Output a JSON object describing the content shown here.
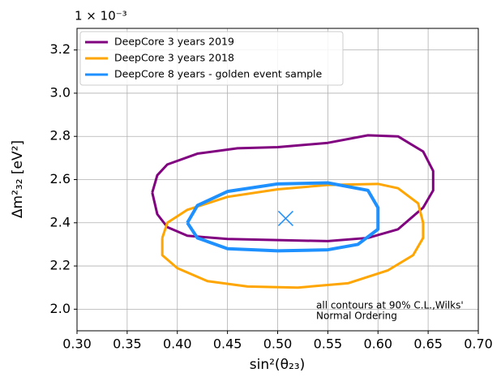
{
  "chart_data": {
    "type": "line",
    "axis_multiplier": "1 × 10⁻³",
    "xlabel": "sin²(θ₂₃)",
    "ylabel": "Δm²₃₂ [eV²]",
    "xlim": [
      0.3,
      0.7
    ],
    "ylim": [
      1.9,
      3.3
    ],
    "xticks": [
      {
        "value": 0.3,
        "label": "0.30"
      },
      {
        "value": 0.35,
        "label": "0.35"
      },
      {
        "value": 0.4,
        "label": "0.40"
      },
      {
        "value": 0.45,
        "label": "0.45"
      },
      {
        "value": 0.5,
        "label": "0.50"
      },
      {
        "value": 0.55,
        "label": "0.55"
      },
      {
        "value": 0.6,
        "label": "0.60"
      },
      {
        "value": 0.65,
        "label": "0.65"
      },
      {
        "value": 0.7,
        "label": "0.70"
      }
    ],
    "yticks": [
      {
        "value": 2,
        "label": "2.0"
      },
      2.2,
      2.4,
      2.6,
      2.8,
      {
        "value": 3,
        "label": "3.0"
      },
      3.2
    ],
    "grid": true,
    "legend": "upper left",
    "series": [
      {
        "name": "DeepCore 3 years 2019",
        "color": "#800080",
        "x": [
          0.375,
          0.38,
          0.39,
          0.42,
          0.46,
          0.5,
          0.55,
          0.59,
          0.62,
          0.645,
          0.655,
          0.655,
          0.645,
          0.62,
          0.59,
          0.55,
          0.5,
          0.45,
          0.41,
          0.39,
          0.38,
          0.375
        ],
        "values": [
          2.54,
          2.62,
          2.67,
          2.72,
          2.745,
          2.75,
          2.77,
          2.805,
          2.8,
          2.73,
          2.64,
          2.55,
          2.47,
          2.37,
          2.33,
          2.315,
          2.32,
          2.325,
          2.34,
          2.38,
          2.44,
          2.54
        ]
      },
      {
        "name": "DeepCore 3 years 2018",
        "color": "#ffa500",
        "x": [
          0.385,
          0.39,
          0.41,
          0.45,
          0.5,
          0.55,
          0.6,
          0.62,
          0.64,
          0.645,
          0.645,
          0.635,
          0.61,
          0.57,
          0.52,
          0.47,
          0.43,
          0.4,
          0.385,
          0.385
        ],
        "values": [
          2.33,
          2.4,
          2.46,
          2.52,
          2.555,
          2.575,
          2.58,
          2.56,
          2.49,
          2.4,
          2.33,
          2.25,
          2.18,
          2.12,
          2.1,
          2.105,
          2.13,
          2.19,
          2.25,
          2.33
        ]
      },
      {
        "name": "DeepCore 8 years - golden event sample",
        "color": "#1e90ff",
        "x": [
          0.41,
          0.42,
          0.45,
          0.5,
          0.55,
          0.59,
          0.6,
          0.6,
          0.58,
          0.55,
          0.5,
          0.45,
          0.42,
          0.41
        ],
        "values": [
          2.4,
          2.48,
          2.545,
          2.58,
          2.585,
          2.55,
          2.47,
          2.37,
          2.3,
          2.275,
          2.27,
          2.28,
          2.33,
          2.4
        ]
      }
    ],
    "best_fit": {
      "x": 0.508,
      "y": 2.42,
      "color": "#1e90ff"
    },
    "annotation": [
      "all contours at 90% C.L.,Wilks'",
      "Normal Ordering"
    ]
  }
}
